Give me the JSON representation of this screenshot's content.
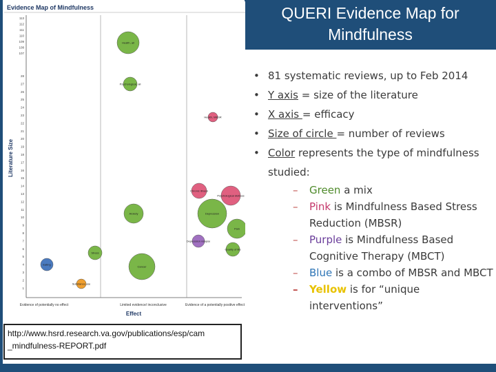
{
  "title": "QUERI Evidence Map for Mindfulness",
  "map": {
    "heading": "Evidence Map of Mindfulness",
    "y_axis_label": "Literature Size",
    "x_axis_label": "Effect",
    "x_categories": [
      "Evidence of potentially no effect",
      "Limited evidence/ inconclusive",
      "Evidence of a potentially positive effect"
    ],
    "y_ticks_upper": [
      "113",
      "112",
      "111",
      "110",
      "109",
      "108",
      "107"
    ],
    "y_ticks_lower": [
      "28",
      "27",
      "26",
      "25",
      "24",
      "23",
      "22",
      "21",
      "20",
      "19",
      "18",
      "17",
      "16",
      "15",
      "14",
      "13",
      "12",
      "11",
      "10",
      "9",
      "8",
      "7",
      "6",
      "5",
      "4",
      "3",
      "2",
      "1"
    ],
    "bubbles": [
      {
        "label": "Health, all",
        "color": "#7ab648"
      },
      {
        "label": "Psychological, all",
        "color": "#7ab648"
      },
      {
        "label": "Health, MBSR",
        "color": "#e06080"
      },
      {
        "label": "Chronic illness",
        "color": "#e06080"
      },
      {
        "label": "Psychological distress",
        "color": "#e06080"
      },
      {
        "label": "Depression",
        "color": "#7ab648"
      },
      {
        "label": "Anxiety",
        "color": "#7ab648"
      },
      {
        "label": "Depression relapse",
        "color": "#a070c0"
      },
      {
        "label": "Quality of life",
        "color": "#7ab648"
      },
      {
        "label": "Pain",
        "color": "#7ab648"
      },
      {
        "label": "Stress",
        "color": "#7ab648"
      },
      {
        "label": "Cancer",
        "color": "#7ab648"
      },
      {
        "label": "Eating",
        "color": "#4a7abf"
      },
      {
        "label": "Substance use",
        "color": "#f0a030"
      }
    ]
  },
  "bullets": [
    {
      "segments": [
        {
          "text": "81 systematic reviews, up to Feb 2014",
          "style": ""
        }
      ]
    },
    {
      "segments": [
        {
          "text": "Y axis",
          "style": "u"
        },
        {
          "text": " = size of the literature",
          "style": ""
        }
      ]
    },
    {
      "segments": [
        {
          "text": "X axis ",
          "style": "u"
        },
        {
          "text": "= efficacy",
          "style": ""
        }
      ]
    },
    {
      "segments": [
        {
          "text": "Size of circle ",
          "style": "u"
        },
        {
          "text": "= number of reviews",
          "style": ""
        }
      ]
    },
    {
      "segments": [
        {
          "text": "Color",
          "style": "u"
        },
        {
          "text": " represents the type of mindfulness studied:",
          "style": ""
        }
      ]
    }
  ],
  "sub_bullets": [
    {
      "lead": "Green",
      "lead_style": "green",
      "rest": " a mix"
    },
    {
      "lead": "Pink",
      "lead_style": "pink",
      "rest": " is Mindfulness Based Stress Reduction (MBSR)"
    },
    {
      "lead": "Purple",
      "lead_style": "purple",
      "rest": " is Mindfulness Based Cognitive Therapy (MBCT)"
    },
    {
      "lead": "Blue",
      "lead_style": "blue",
      "rest": " is a combo of MBSR and MBCT"
    },
    {
      "lead": "Yellow",
      "lead_style": "yellow",
      "rest": " is for “unique interventions”"
    }
  ],
  "source": {
    "line1": "http://www.hsrd.research.va.gov/publications/esp/cam",
    "line2": "_mindfulness-REPORT.pdf"
  }
}
